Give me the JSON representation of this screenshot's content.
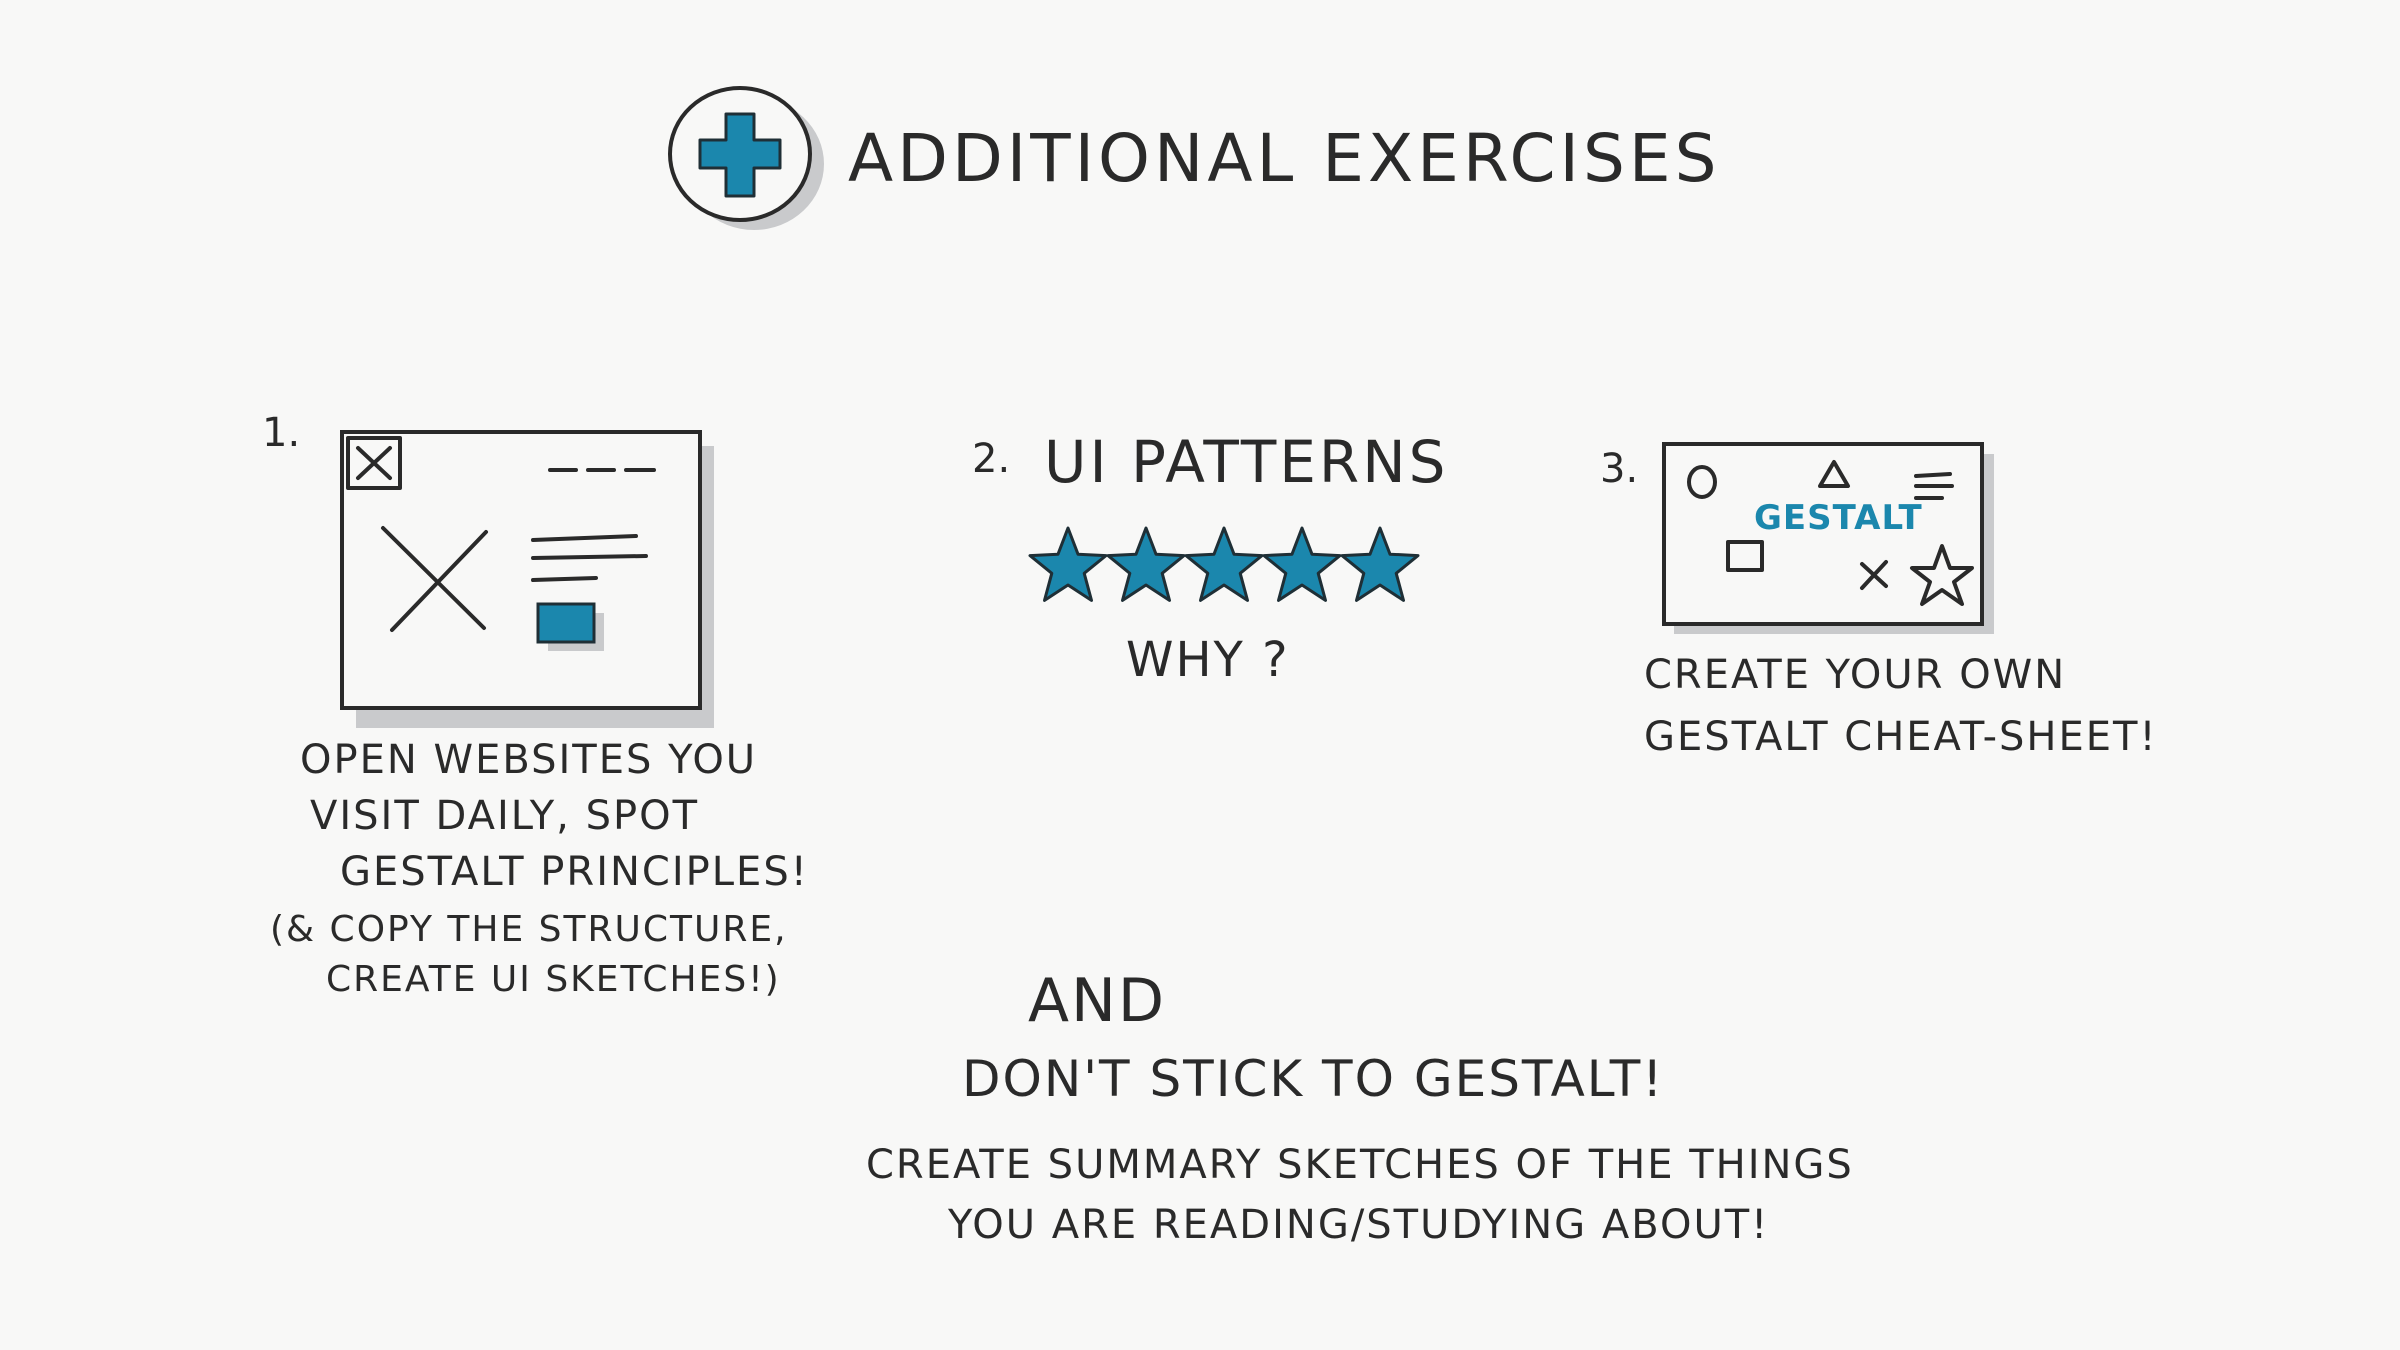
{
  "title": "ADDITIONAL EXERCISES",
  "icons": {
    "title_icon": "plus-circle-icon",
    "wireframe": "browser-wireframe-icon",
    "stars": "star-icon",
    "cheat_sheet": "gestalt-cheat-sheet-icon"
  },
  "colors": {
    "accent": "#1b87ad",
    "ink": "#2a2a2a",
    "shadow": "#c9cacc",
    "paper": "#f8f8f7"
  },
  "exercise_1": {
    "number": "1.",
    "lines": [
      "OPEN WEBSITES YOU",
      "VISIT DAILY, SPOT",
      "GESTALT PRINCIPLES!"
    ],
    "note_lines": [
      "(& COPY THE STRUCTURE,",
      "CREATE UI SKETCHES!)"
    ]
  },
  "exercise_2": {
    "number": "2.",
    "heading": "UI PATTERNS",
    "rating": 5,
    "rating_max": 5,
    "question": "WHY ?"
  },
  "exercise_3": {
    "number": "3.",
    "sketch_word": "GESTALT",
    "lines": [
      "CREATE YOUR OWN",
      "GESTALT CHEAT-SHEET!"
    ]
  },
  "closing": {
    "and": "AND",
    "heading": "DON'T STICK TO GESTALT!",
    "lines": [
      "CREATE SUMMARY SKETCHES OF THE THINGS",
      "YOU ARE READING/STUDYING ABOUT!"
    ]
  }
}
